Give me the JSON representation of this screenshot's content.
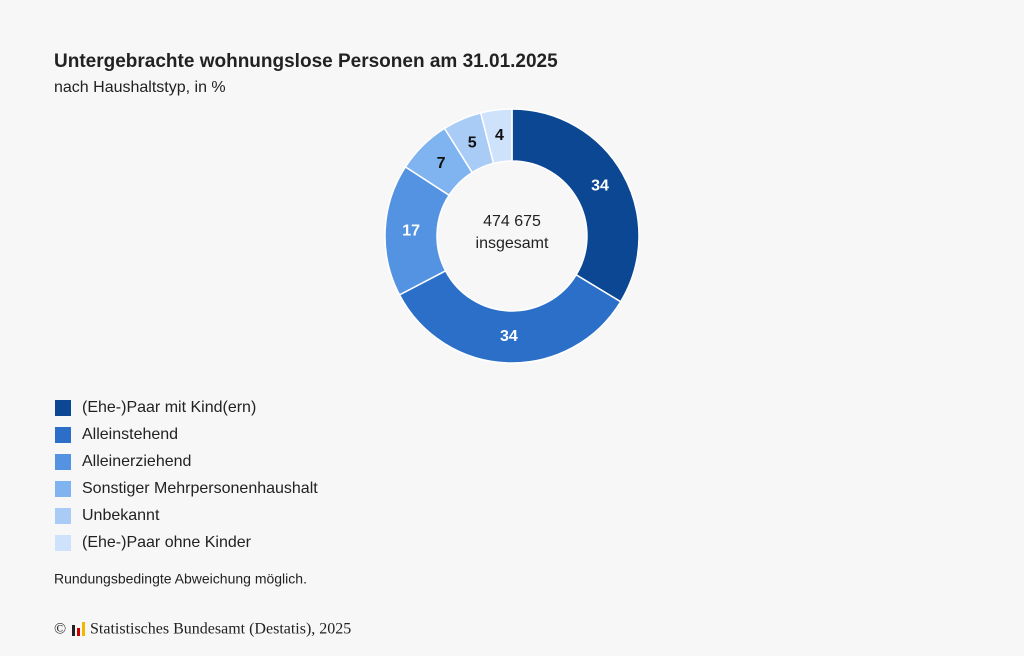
{
  "chart_data": {
    "type": "pie",
    "title": "Untergebrachte wohnungslose Personen am 31.01.2025",
    "subtitle": "nach Haushaltstyp, in %",
    "center_label": [
      "474 675",
      "insgesamt"
    ],
    "categories": [
      "(Ehe-)Paar mit Kind(ern)",
      "Alleinstehend",
      "Alleinerziehend",
      "Sonstiger Mehrpersonenhaushalt",
      "Unbekannt",
      "(Ehe-)Paar ohne Kinder"
    ],
    "values": [
      34,
      34,
      17,
      7,
      5,
      4
    ],
    "colors": [
      "#0b4793",
      "#2c6fc8",
      "#5393e2",
      "#7fb4f0",
      "#a8ccf6",
      "#cfe2fb"
    ],
    "note": "Rundungsbedingte Abweichung möglich.",
    "copyright": "©",
    "source": "Statistisches Bundesamt (Destatis), 2025"
  }
}
